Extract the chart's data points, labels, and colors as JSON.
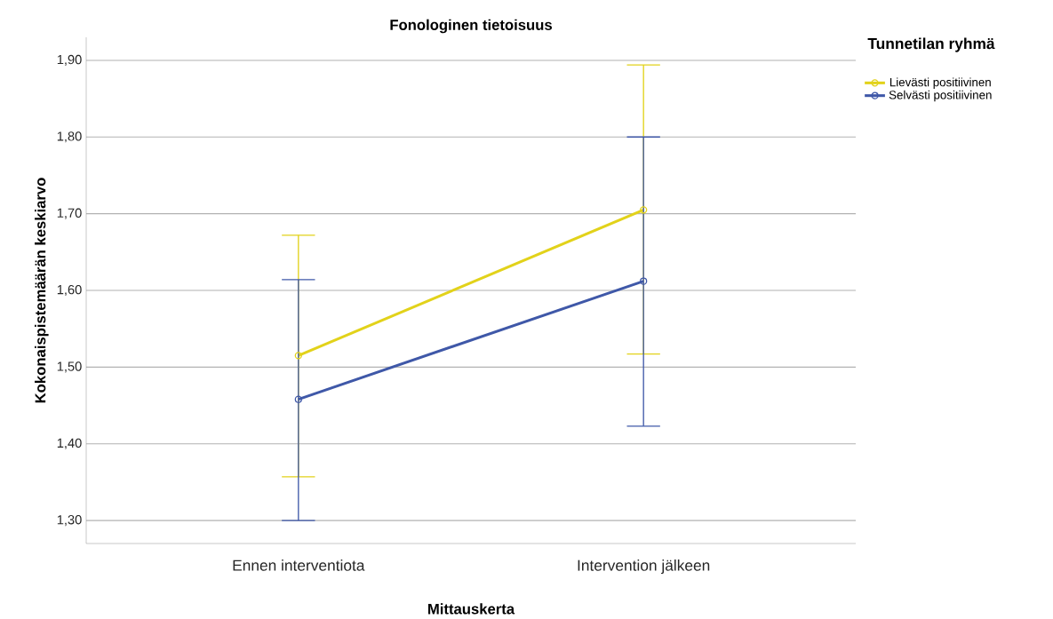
{
  "chart_data": {
    "type": "line",
    "title": "Fonologinen tietoisuus",
    "xlabel": "Mittauskerta",
    "ylabel": "Kokonaispistemäärän keskiarvo",
    "legend_title": "Tunnetilan ryhmä",
    "categories": [
      "Ennen interventiota",
      "Intervention jälkeen"
    ],
    "series": [
      {
        "name": "Lievästi positiivinen",
        "color": "#e2d21a",
        "values": [
          1.515,
          1.705
        ],
        "errors": [
          [
            1.357,
            1.672
          ],
          [
            1.517,
            1.894
          ]
        ]
      },
      {
        "name": "Selvästi positiivinen",
        "color": "#3f58a8",
        "values": [
          1.458,
          1.612
        ],
        "errors": [
          [
            1.3,
            1.614
          ],
          [
            1.423,
            1.8
          ]
        ]
      }
    ],
    "ylim": [
      1.27,
      1.93
    ],
    "yticks": [
      {
        "value": 1.3,
        "label": "1,30"
      },
      {
        "value": 1.4,
        "label": "1,40"
      },
      {
        "value": 1.5,
        "label": "1,50"
      },
      {
        "value": 1.6,
        "label": "1,60"
      },
      {
        "value": 1.7,
        "label": "1,70"
      },
      {
        "value": 1.8,
        "label": "1,80"
      },
      {
        "value": 1.9,
        "label": "1,90"
      }
    ],
    "grid": "y",
    "legend": "top right",
    "marker": "circle",
    "line_style": "solid"
  }
}
